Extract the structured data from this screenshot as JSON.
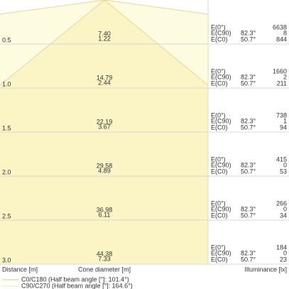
{
  "rows": [
    {
      "distance": "0.5",
      "diameter_c90": "7.40",
      "diameter_c0": "1.22",
      "e0": "6638",
      "ec90": "8",
      "ec0": "844"
    },
    {
      "distance": "1.0",
      "diameter_c90": "14.79",
      "diameter_c0": "2.44",
      "e0": "1660",
      "ec90": "2",
      "ec0": "211"
    },
    {
      "distance": "1.5",
      "diameter_c90": "22.19",
      "diameter_c0": "3.67",
      "e0": "738",
      "ec90": "1",
      "ec0": "94"
    },
    {
      "distance": "2.0",
      "diameter_c90": "29.58",
      "diameter_c0": "4.89",
      "e0": "415",
      "ec90": "0",
      "ec0": "53"
    },
    {
      "distance": "2.5",
      "diameter_c90": "36.98",
      "diameter_c0": "6.11",
      "e0": "266",
      "ec90": "0",
      "ec0": "34"
    },
    {
      "distance": "3.0",
      "diameter_c90": "44.38",
      "diameter_c0": "7.33",
      "e0": "184",
      "ec90": "0",
      "ec0": "23"
    }
  ],
  "row_labels": {
    "e0": "E(0°)",
    "ec90": "E(C90)",
    "ec0": "E(C0)"
  },
  "angles": {
    "c90": "82.3°",
    "c0": "50.7°"
  },
  "footer": {
    "distance": "Distance [m]",
    "diameter": "Cone diameter [m]",
    "illuminance": "Illuminance [lx]"
  },
  "legend": [
    "C0/C180 (Half beam angle [°]: 101.4°)",
    "C90/C270 (Half beam angle [°]: 164.6°)"
  ]
}
